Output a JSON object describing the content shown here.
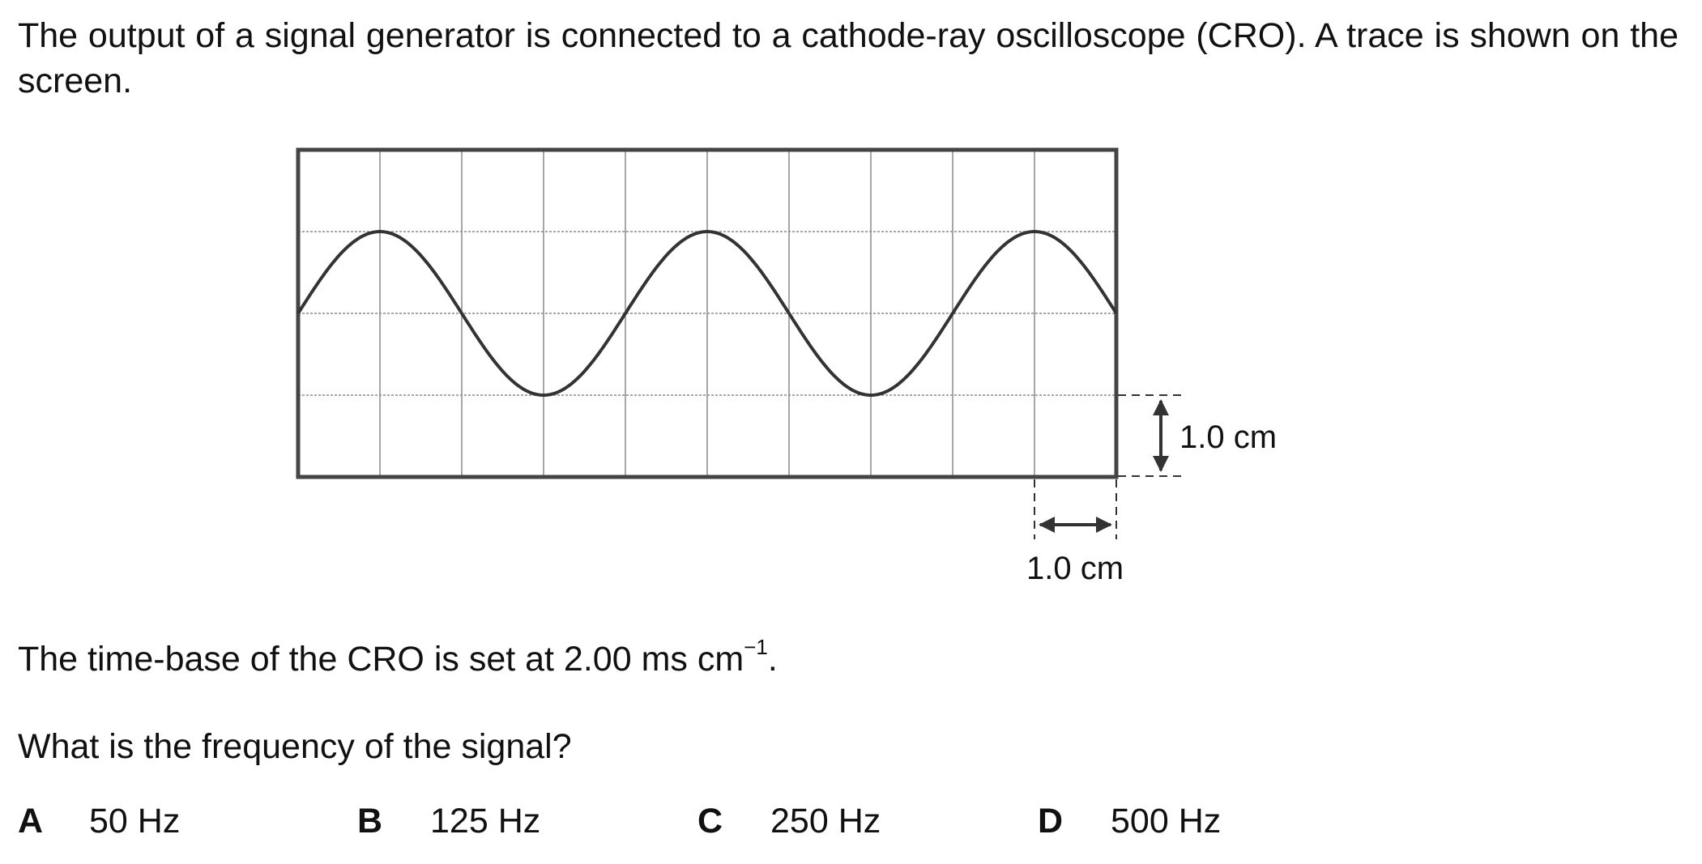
{
  "question": {
    "intro": "The output of a signal generator is connected to a cathode-ray oscilloscope (CRO). A trace is shown on the screen.",
    "timebase_prefix": "The time-base of the CRO is set at 2.00 ms cm",
    "timebase_exponent": "−1",
    "timebase_suffix": ".",
    "prompt": "What is the frequency of the signal?"
  },
  "diagram": {
    "vertical_scale_label": "1.0 cm",
    "horizontal_scale_label": "1.0 cm",
    "grid_columns": 10,
    "grid_rows": 4,
    "square_size_cm": 1.0,
    "wave_period_squares": 4,
    "wave_amplitude_squares": 1,
    "wave_start_phase": "centre-line rising"
  },
  "options": [
    {
      "letter": "A",
      "value": "50 Hz"
    },
    {
      "letter": "B",
      "value": "125 Hz"
    },
    {
      "letter": "C",
      "value": "250 Hz"
    },
    {
      "letter": "D",
      "value": "500 Hz"
    }
  ]
}
